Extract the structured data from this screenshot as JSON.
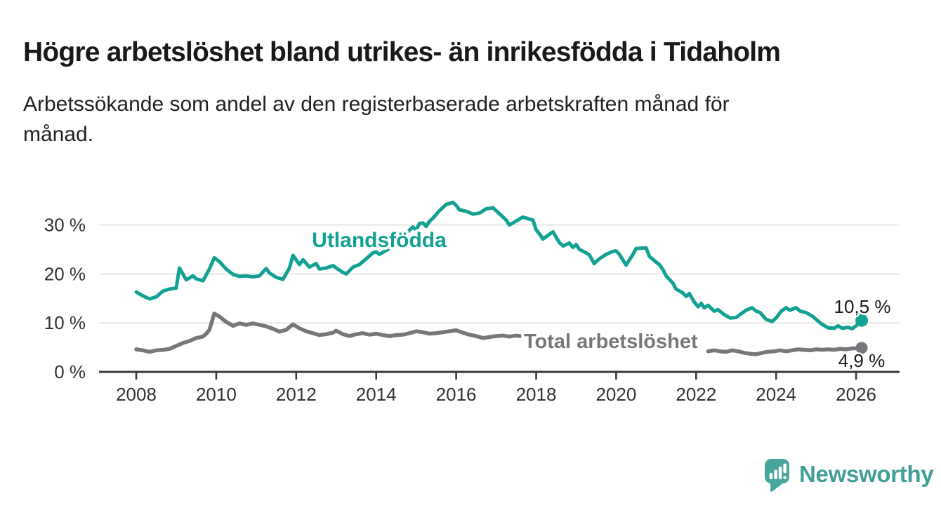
{
  "header": {
    "title": "Högre arbetslöshet bland utrikes- än inrikesfödda i Tidaholm",
    "subtitle_lines": [
      "Arbetssökande som andel av den registerbaserade arbetskraften månad för",
      "månad."
    ]
  },
  "footer": {
    "brand_name": "Newsworthy",
    "logo_icon": "bar-chart-speech-bubble-icon"
  },
  "colors": {
    "teal": "#12a193",
    "gray": "#77777b",
    "grid": "#e2e2e2",
    "axis": "#3a3a3a",
    "tick_text": "#333333",
    "end_label_text": "#1a1a1a",
    "brand_teal": "#3f9e97",
    "background": "#ffffff"
  },
  "chart_data": {
    "type": "line",
    "title": "Högre arbetslöshet bland utrikes- än inrikesfödda i Tidaholm",
    "subtitle": "Arbetssökande som andel av den registerbaserade arbetskraften månad för månad.",
    "unit": "%",
    "grid": true,
    "x_axis": {
      "ticks": [
        2008,
        2010,
        2012,
        2014,
        2016,
        2018,
        2020,
        2022,
        2024,
        2026
      ],
      "range": [
        2007.1,
        2027.1
      ]
    },
    "y_axis": {
      "ticks": [
        {
          "value": 0,
          "label": "0 %"
        },
        {
          "value": 10,
          "label": "10 %"
        },
        {
          "value": 20,
          "label": "20 %"
        },
        {
          "value": 30,
          "label": "30 %"
        }
      ],
      "range": [
        0,
        36
      ]
    },
    "series": [
      {
        "name": "Utlandsfödda",
        "color_key": "teal",
        "end_label": "10,5 %",
        "last_value_pct": 10.5,
        "points": [
          [
            2008.0,
            16.3
          ],
          [
            2008.17,
            15.5
          ],
          [
            2008.33,
            14.9
          ],
          [
            2008.5,
            15.3
          ],
          [
            2008.67,
            16.5
          ],
          [
            2008.83,
            16.9
          ],
          [
            2009.0,
            17.1
          ],
          [
            2009.08,
            21.2
          ],
          [
            2009.25,
            18.8
          ],
          [
            2009.42,
            19.6
          ],
          [
            2009.5,
            19.0
          ],
          [
            2009.67,
            18.6
          ],
          [
            2009.83,
            21.0
          ],
          [
            2009.95,
            23.3
          ],
          [
            2010.08,
            22.5
          ],
          [
            2010.25,
            21.0
          ],
          [
            2010.42,
            19.9
          ],
          [
            2010.58,
            19.5
          ],
          [
            2010.75,
            19.6
          ],
          [
            2010.92,
            19.4
          ],
          [
            2011.08,
            19.6
          ],
          [
            2011.25,
            21.1
          ],
          [
            2011.33,
            20.2
          ],
          [
            2011.5,
            19.3
          ],
          [
            2011.67,
            18.9
          ],
          [
            2011.83,
            21.2
          ],
          [
            2011.92,
            23.8
          ],
          [
            2012.08,
            21.9
          ],
          [
            2012.17,
            22.9
          ],
          [
            2012.33,
            21.4
          ],
          [
            2012.5,
            22.1
          ],
          [
            2012.58,
            21.0
          ],
          [
            2012.75,
            21.2
          ],
          [
            2012.92,
            21.7
          ],
          [
            2013.0,
            21.2
          ],
          [
            2013.17,
            20.3
          ],
          [
            2013.25,
            20.0
          ],
          [
            2013.42,
            21.4
          ],
          [
            2013.58,
            21.9
          ],
          [
            2013.75,
            23.1
          ],
          [
            2013.92,
            24.3
          ],
          [
            2014.0,
            24.5
          ],
          [
            2014.08,
            24.0
          ],
          [
            2014.25,
            24.8
          ],
          [
            2014.42,
            25.6
          ],
          [
            2014.58,
            26.8
          ],
          [
            2014.75,
            28.3
          ],
          [
            2014.92,
            29.6
          ],
          [
            2015.0,
            28.9
          ],
          [
            2015.08,
            30.3
          ],
          [
            2015.17,
            30.4
          ],
          [
            2015.25,
            29.7
          ],
          [
            2015.33,
            30.7
          ],
          [
            2015.42,
            31.4
          ],
          [
            2015.58,
            32.9
          ],
          [
            2015.75,
            34.2
          ],
          [
            2015.92,
            34.6
          ],
          [
            2016.0,
            34.0
          ],
          [
            2016.08,
            33.1
          ],
          [
            2016.25,
            32.8
          ],
          [
            2016.42,
            32.2
          ],
          [
            2016.58,
            32.4
          ],
          [
            2016.75,
            33.3
          ],
          [
            2016.92,
            33.5
          ],
          [
            2017.08,
            32.3
          ],
          [
            2017.25,
            31.0
          ],
          [
            2017.33,
            30.0
          ],
          [
            2017.42,
            30.4
          ],
          [
            2017.58,
            31.2
          ],
          [
            2017.67,
            31.6
          ],
          [
            2017.83,
            31.2
          ],
          [
            2017.92,
            31.0
          ],
          [
            2018.0,
            29.0
          ],
          [
            2018.08,
            28.2
          ],
          [
            2018.17,
            27.1
          ],
          [
            2018.25,
            27.6
          ],
          [
            2018.42,
            28.6
          ],
          [
            2018.58,
            26.4
          ],
          [
            2018.67,
            25.7
          ],
          [
            2018.83,
            26.3
          ],
          [
            2018.92,
            25.4
          ],
          [
            2019.0,
            26.0
          ],
          [
            2019.08,
            25.0
          ],
          [
            2019.25,
            24.3
          ],
          [
            2019.33,
            23.9
          ],
          [
            2019.45,
            22.1
          ],
          [
            2019.58,
            23.1
          ],
          [
            2019.75,
            24.0
          ],
          [
            2019.92,
            24.6
          ],
          [
            2020.0,
            24.7
          ],
          [
            2020.08,
            24.0
          ],
          [
            2020.25,
            21.8
          ],
          [
            2020.42,
            24.0
          ],
          [
            2020.5,
            25.2
          ],
          [
            2020.75,
            25.3
          ],
          [
            2020.83,
            23.6
          ],
          [
            2021.0,
            22.4
          ],
          [
            2021.08,
            21.9
          ],
          [
            2021.17,
            20.9
          ],
          [
            2021.25,
            19.6
          ],
          [
            2021.42,
            18.1
          ],
          [
            2021.5,
            16.9
          ],
          [
            2021.67,
            16.1
          ],
          [
            2021.75,
            15.4
          ],
          [
            2021.83,
            16.0
          ],
          [
            2021.95,
            14.3
          ],
          [
            2022.05,
            13.3
          ],
          [
            2022.13,
            14.0
          ],
          [
            2022.2,
            13.1
          ],
          [
            2022.3,
            13.6
          ],
          [
            2022.45,
            12.4
          ],
          [
            2022.55,
            12.7
          ],
          [
            2022.7,
            11.7
          ],
          [
            2022.85,
            11.0
          ],
          [
            2023.0,
            11.1
          ],
          [
            2023.13,
            11.9
          ],
          [
            2023.25,
            12.6
          ],
          [
            2023.4,
            13.1
          ],
          [
            2023.5,
            12.4
          ],
          [
            2023.6,
            12.1
          ],
          [
            2023.75,
            10.7
          ],
          [
            2023.9,
            10.3
          ],
          [
            2024.0,
            11.0
          ],
          [
            2024.13,
            12.4
          ],
          [
            2024.25,
            13.1
          ],
          [
            2024.35,
            12.6
          ],
          [
            2024.5,
            13.1
          ],
          [
            2024.6,
            12.4
          ],
          [
            2024.75,
            12.1
          ],
          [
            2024.9,
            11.4
          ],
          [
            2025.0,
            10.7
          ],
          [
            2025.15,
            9.7
          ],
          [
            2025.3,
            9.0
          ],
          [
            2025.45,
            8.9
          ],
          [
            2025.55,
            9.4
          ],
          [
            2025.65,
            8.9
          ],
          [
            2025.8,
            9.1
          ],
          [
            2025.9,
            8.8
          ],
          [
            2026.0,
            9.4
          ],
          [
            2026.14,
            10.5
          ]
        ]
      },
      {
        "name": "Total arbetslöshet",
        "color_key": "gray",
        "end_label": "4,9 %",
        "last_value_pct": 4.9,
        "segments": [
          [
            [
              2008.0,
              4.6
            ],
            [
              2008.17,
              4.4
            ],
            [
              2008.33,
              4.1
            ],
            [
              2008.5,
              4.4
            ],
            [
              2008.67,
              4.5
            ],
            [
              2008.83,
              4.7
            ],
            [
              2009.0,
              5.3
            ],
            [
              2009.17,
              5.9
            ],
            [
              2009.33,
              6.3
            ],
            [
              2009.5,
              6.9
            ],
            [
              2009.67,
              7.2
            ],
            [
              2009.75,
              7.8
            ],
            [
              2009.83,
              8.6
            ],
            [
              2009.95,
              11.9
            ],
            [
              2010.08,
              11.3
            ],
            [
              2010.25,
              10.2
            ],
            [
              2010.42,
              9.4
            ],
            [
              2010.58,
              9.9
            ],
            [
              2010.75,
              9.6
            ],
            [
              2010.92,
              9.9
            ],
            [
              2011.08,
              9.6
            ],
            [
              2011.25,
              9.3
            ],
            [
              2011.42,
              8.8
            ],
            [
              2011.58,
              8.2
            ],
            [
              2011.75,
              8.6
            ],
            [
              2011.92,
              9.7
            ],
            [
              2012.08,
              8.9
            ],
            [
              2012.25,
              8.3
            ],
            [
              2012.42,
              7.9
            ],
            [
              2012.58,
              7.5
            ],
            [
              2012.75,
              7.7
            ],
            [
              2012.92,
              8.0
            ],
            [
              2013.0,
              8.4
            ],
            [
              2013.17,
              7.7
            ],
            [
              2013.33,
              7.3
            ],
            [
              2013.5,
              7.7
            ],
            [
              2013.67,
              7.9
            ],
            [
              2013.83,
              7.6
            ],
            [
              2014.0,
              7.8
            ],
            [
              2014.17,
              7.5
            ],
            [
              2014.33,
              7.3
            ],
            [
              2014.5,
              7.5
            ],
            [
              2014.67,
              7.6
            ],
            [
              2014.83,
              7.9
            ],
            [
              2015.0,
              8.3
            ],
            [
              2015.17,
              8.1
            ],
            [
              2015.33,
              7.8
            ],
            [
              2015.5,
              7.9
            ],
            [
              2015.67,
              8.1
            ],
            [
              2015.83,
              8.3
            ],
            [
              2016.0,
              8.5
            ],
            [
              2016.17,
              8.0
            ],
            [
              2016.33,
              7.6
            ],
            [
              2016.5,
              7.3
            ],
            [
              2016.67,
              6.9
            ],
            [
              2016.83,
              7.1
            ],
            [
              2017.0,
              7.3
            ],
            [
              2017.17,
              7.4
            ],
            [
              2017.33,
              7.2
            ],
            [
              2017.5,
              7.4
            ],
            [
              2017.6,
              7.3
            ]
          ],
          [
            [
              2022.3,
              4.2
            ],
            [
              2022.45,
              4.4
            ],
            [
              2022.6,
              4.2
            ],
            [
              2022.75,
              4.1
            ],
            [
              2022.9,
              4.4
            ],
            [
              2023.05,
              4.2
            ],
            [
              2023.2,
              3.9
            ],
            [
              2023.35,
              3.7
            ],
            [
              2023.5,
              3.6
            ],
            [
              2023.65,
              3.9
            ],
            [
              2023.8,
              4.1
            ],
            [
              2023.95,
              4.2
            ],
            [
              2024.1,
              4.4
            ],
            [
              2024.25,
              4.2
            ],
            [
              2024.4,
              4.4
            ],
            [
              2024.55,
              4.6
            ],
            [
              2024.7,
              4.5
            ],
            [
              2024.85,
              4.4
            ],
            [
              2025.0,
              4.6
            ],
            [
              2025.15,
              4.5
            ],
            [
              2025.3,
              4.6
            ],
            [
              2025.45,
              4.5
            ],
            [
              2025.6,
              4.7
            ],
            [
              2025.75,
              4.6
            ],
            [
              2025.9,
              4.8
            ],
            [
              2026.0,
              4.8
            ],
            [
              2026.14,
              4.9
            ]
          ]
        ]
      }
    ],
    "legend_position": "inline-labels-on-chart"
  }
}
